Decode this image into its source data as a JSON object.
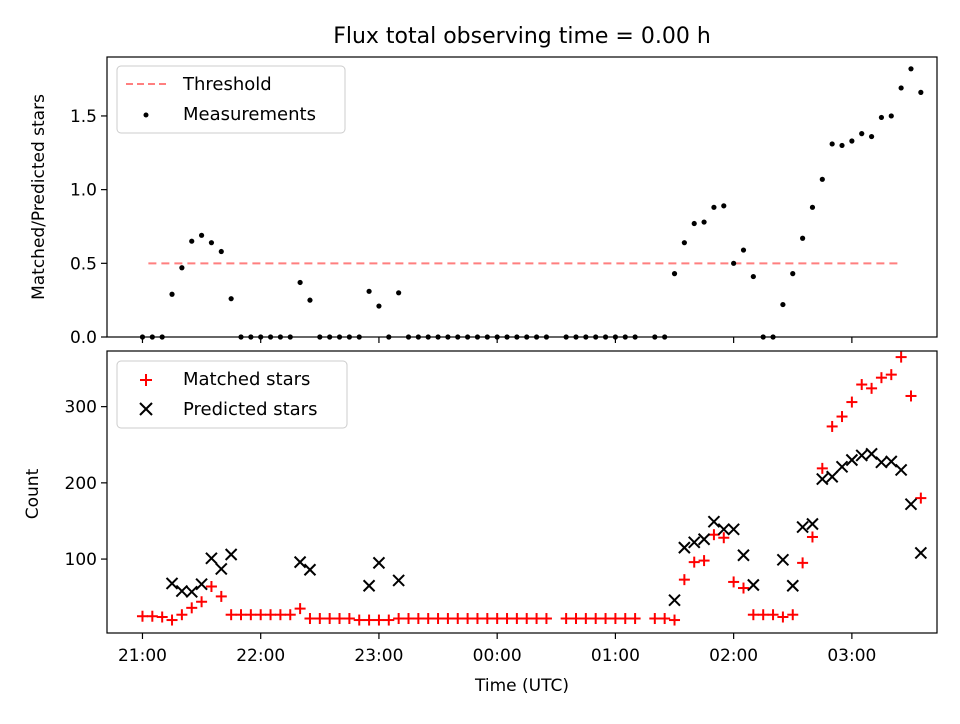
{
  "chart_data": [
    {
      "type": "scatter",
      "title": "Flux total observing time = 0.00 h",
      "xlabel": "",
      "ylabel": "Matched/Predicted stars",
      "x_ticks": [
        "21:00",
        "22:00",
        "23:00",
        "00:00",
        "01:00",
        "02:00",
        "03:00"
      ],
      "x_ticks_hours": [
        21,
        22,
        23,
        24,
        25,
        26,
        27
      ],
      "xlim_hours": [
        20.7,
        27.72
      ],
      "y_ticks": [
        "0.0",
        "0.5",
        "1.0",
        "1.5"
      ],
      "ylim": [
        0,
        1.9
      ],
      "legend_position": "top-left",
      "threshold": {
        "label": "Threshold",
        "value": 0.5,
        "x_range": [
          "21:03",
          "03:25"
        ],
        "color": "#ff7f7f",
        "style": "dashed"
      },
      "series": [
        {
          "name": "Measurements",
          "marker": "dot",
          "color": "#000000",
          "points": [
            [
              "21:00",
              0
            ],
            [
              "21:05",
              0
            ],
            [
              "21:10",
              0
            ],
            [
              "21:15",
              0.29
            ],
            [
              "21:20",
              0.47
            ],
            [
              "21:25",
              0.65
            ],
            [
              "21:30",
              0.69
            ],
            [
              "21:35",
              0.64
            ],
            [
              "21:40",
              0.58
            ],
            [
              "21:45",
              0.26
            ],
            [
              "21:50",
              0
            ],
            [
              "21:55",
              0
            ],
            [
              "22:00",
              0
            ],
            [
              "22:05",
              0
            ],
            [
              "22:10",
              0
            ],
            [
              "22:15",
              0
            ],
            [
              "22:20",
              0.37
            ],
            [
              "22:25",
              0.25
            ],
            [
              "22:30",
              0
            ],
            [
              "22:35",
              0
            ],
            [
              "22:40",
              0
            ],
            [
              "22:45",
              0
            ],
            [
              "22:50",
              0
            ],
            [
              "22:55",
              0.31
            ],
            [
              "23:00",
              0.21
            ],
            [
              "23:05",
              0
            ],
            [
              "23:10",
              0.3
            ],
            [
              "23:15",
              0
            ],
            [
              "23:20",
              0
            ],
            [
              "23:25",
              0
            ],
            [
              "23:30",
              0
            ],
            [
              "23:35",
              0
            ],
            [
              "23:40",
              0
            ],
            [
              "23:45",
              0
            ],
            [
              "23:50",
              0
            ],
            [
              "23:55",
              0
            ],
            [
              "00:00",
              0
            ],
            [
              "00:05",
              0
            ],
            [
              "00:10",
              0
            ],
            [
              "00:15",
              0
            ],
            [
              "00:20",
              0
            ],
            [
              "00:25",
              0
            ],
            [
              "00:35",
              0
            ],
            [
              "00:40",
              0
            ],
            [
              "00:45",
              0
            ],
            [
              "00:50",
              0
            ],
            [
              "00:55",
              0
            ],
            [
              "01:00",
              0
            ],
            [
              "01:05",
              0
            ],
            [
              "01:10",
              0
            ],
            [
              "01:20",
              0
            ],
            [
              "01:25",
              0
            ],
            [
              "01:30",
              0.43
            ],
            [
              "01:35",
              0.64
            ],
            [
              "01:40",
              0.77
            ],
            [
              "01:45",
              0.78
            ],
            [
              "01:50",
              0.88
            ],
            [
              "01:55",
              0.89
            ],
            [
              "02:00",
              0.5
            ],
            [
              "02:05",
              0.59
            ],
            [
              "02:10",
              0.41
            ],
            [
              "02:15",
              0
            ],
            [
              "02:20",
              0
            ],
            [
              "02:25",
              0.22
            ],
            [
              "02:30",
              0.43
            ],
            [
              "02:35",
              0.67
            ],
            [
              "02:40",
              0.88
            ],
            [
              "02:45",
              1.07
            ],
            [
              "02:50",
              1.31
            ],
            [
              "02:55",
              1.3
            ],
            [
              "03:00",
              1.33
            ],
            [
              "03:05",
              1.38
            ],
            [
              "03:10",
              1.36
            ],
            [
              "03:15",
              1.49
            ],
            [
              "03:20",
              1.5
            ],
            [
              "03:25",
              1.69
            ],
            [
              "03:30",
              1.82
            ],
            [
              "03:35",
              1.66
            ]
          ]
        }
      ]
    },
    {
      "type": "scatter",
      "title": "",
      "xlabel": "Time (UTC)",
      "ylabel": "Count",
      "x_ticks": [
        "21:00",
        "22:00",
        "23:00",
        "00:00",
        "01:00",
        "02:00",
        "03:00"
      ],
      "x_ticks_hours": [
        21,
        22,
        23,
        24,
        25,
        26,
        27
      ],
      "xlim_hours": [
        20.7,
        27.72
      ],
      "y_ticks": [
        "100",
        "200",
        "300"
      ],
      "ylim": [
        3,
        373
      ],
      "legend_position": "top-left",
      "series": [
        {
          "name": "Matched stars",
          "marker": "plus",
          "color": "#ff0000",
          "points": [
            [
              "21:00",
              25
            ],
            [
              "21:05",
              25
            ],
            [
              "21:10",
              24
            ],
            [
              "21:15",
              20
            ],
            [
              "21:20",
              27
            ],
            [
              "21:25",
              36
            ],
            [
              "21:30",
              44
            ],
            [
              "21:35",
              64
            ],
            [
              "21:40",
              51
            ],
            [
              "21:45",
              27
            ],
            [
              "21:50",
              27
            ],
            [
              "21:55",
              27
            ],
            [
              "22:00",
              27
            ],
            [
              "22:05",
              27
            ],
            [
              "22:10",
              27
            ],
            [
              "22:15",
              27
            ],
            [
              "22:20",
              35
            ],
            [
              "22:25",
              22
            ],
            [
              "22:30",
              22
            ],
            [
              "22:35",
              22
            ],
            [
              "22:40",
              22
            ],
            [
              "22:45",
              22
            ],
            [
              "22:50",
              20
            ],
            [
              "22:55",
              20
            ],
            [
              "23:00",
              20
            ],
            [
              "23:05",
              20
            ],
            [
              "23:10",
              22
            ],
            [
              "23:15",
              22
            ],
            [
              "23:20",
              22
            ],
            [
              "23:25",
              22
            ],
            [
              "23:30",
              22
            ],
            [
              "23:35",
              22
            ],
            [
              "23:40",
              22
            ],
            [
              "23:45",
              22
            ],
            [
              "23:50",
              22
            ],
            [
              "23:55",
              22
            ],
            [
              "00:00",
              22
            ],
            [
              "00:05",
              22
            ],
            [
              "00:10",
              22
            ],
            [
              "00:15",
              22
            ],
            [
              "00:20",
              22
            ],
            [
              "00:25",
              22
            ],
            [
              "00:35",
              22
            ],
            [
              "00:40",
              22
            ],
            [
              "00:45",
              22
            ],
            [
              "00:50",
              22
            ],
            [
              "00:55",
              22
            ],
            [
              "01:00",
              22
            ],
            [
              "01:05",
              22
            ],
            [
              "01:10",
              22
            ],
            [
              "01:20",
              22
            ],
            [
              "01:25",
              22
            ],
            [
              "01:30",
              20
            ],
            [
              "01:35",
              73
            ],
            [
              "01:40",
              96
            ],
            [
              "01:45",
              98
            ],
            [
              "01:50",
              132
            ],
            [
              "01:55",
              128
            ],
            [
              "02:00",
              70
            ],
            [
              "02:05",
              62
            ],
            [
              "02:10",
              27
            ],
            [
              "02:15",
              27
            ],
            [
              "02:20",
              27
            ],
            [
              "02:25",
              24
            ],
            [
              "02:30",
              27
            ],
            [
              "02:35",
              95
            ],
            [
              "02:40",
              129
            ],
            [
              "02:45",
              219
            ],
            [
              "02:50",
              274
            ],
            [
              "02:55",
              287
            ],
            [
              "03:00",
              306
            ],
            [
              "03:05",
              329
            ],
            [
              "03:10",
              324
            ],
            [
              "03:15",
              338
            ],
            [
              "03:20",
              342
            ],
            [
              "03:25",
              365
            ],
            [
              "03:30",
              314
            ],
            [
              "03:35",
              180
            ]
          ]
        },
        {
          "name": "Predicted stars",
          "marker": "cross",
          "color": "#000000",
          "points": [
            [
              "21:15",
              68
            ],
            [
              "21:20",
              58
            ],
            [
              "21:25",
              57
            ],
            [
              "21:30",
              67
            ],
            [
              "21:35",
              101
            ],
            [
              "21:40",
              87
            ],
            [
              "21:45",
              106
            ],
            [
              "22:20",
              96
            ],
            [
              "22:25",
              86
            ],
            [
              "22:55",
              65
            ],
            [
              "23:00",
              95
            ],
            [
              "23:10",
              72
            ],
            [
              "01:30",
              46
            ],
            [
              "01:35",
              115
            ],
            [
              "01:40",
              122
            ],
            [
              "01:45",
              126
            ],
            [
              "01:50",
              149
            ],
            [
              "01:55",
              139
            ],
            [
              "02:00",
              139
            ],
            [
              "02:05",
              105
            ],
            [
              "02:10",
              66
            ],
            [
              "02:25",
              99
            ],
            [
              "02:30",
              65
            ],
            [
              "02:35",
              142
            ],
            [
              "02:40",
              146
            ],
            [
              "02:45",
              205
            ],
            [
              "02:50",
              208
            ],
            [
              "02:55",
              221
            ],
            [
              "03:00",
              230
            ],
            [
              "03:05",
              236
            ],
            [
              "03:10",
              238
            ],
            [
              "03:15",
              227
            ],
            [
              "03:20",
              228
            ],
            [
              "03:25",
              217
            ],
            [
              "03:30",
              172
            ],
            [
              "03:35",
              108
            ]
          ]
        }
      ]
    }
  ]
}
